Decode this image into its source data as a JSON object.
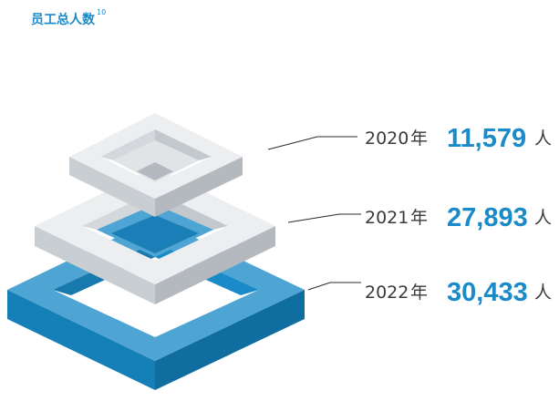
{
  "header": {
    "title": "员工总人数",
    "footnote": "10"
  },
  "colors": {
    "accent": "#1a8bc8",
    "layer_grey": "#e6e9ec",
    "layer_blue": "#1b7fb5"
  },
  "chart_data": {
    "type": "bar",
    "title": "员工总人数",
    "categories": [
      "2020",
      "2021",
      "2022"
    ],
    "values": [
      11579,
      27893,
      30433
    ],
    "entries": [
      {
        "year": "2020",
        "year_unit": "年",
        "value_text": "11,579",
        "unit": "人"
      },
      {
        "year": "2021",
        "year_unit": "年",
        "value_text": "27,893",
        "unit": "人"
      },
      {
        "year": "2022",
        "year_unit": "年",
        "value_text": "30,433",
        "unit": "人"
      }
    ]
  }
}
